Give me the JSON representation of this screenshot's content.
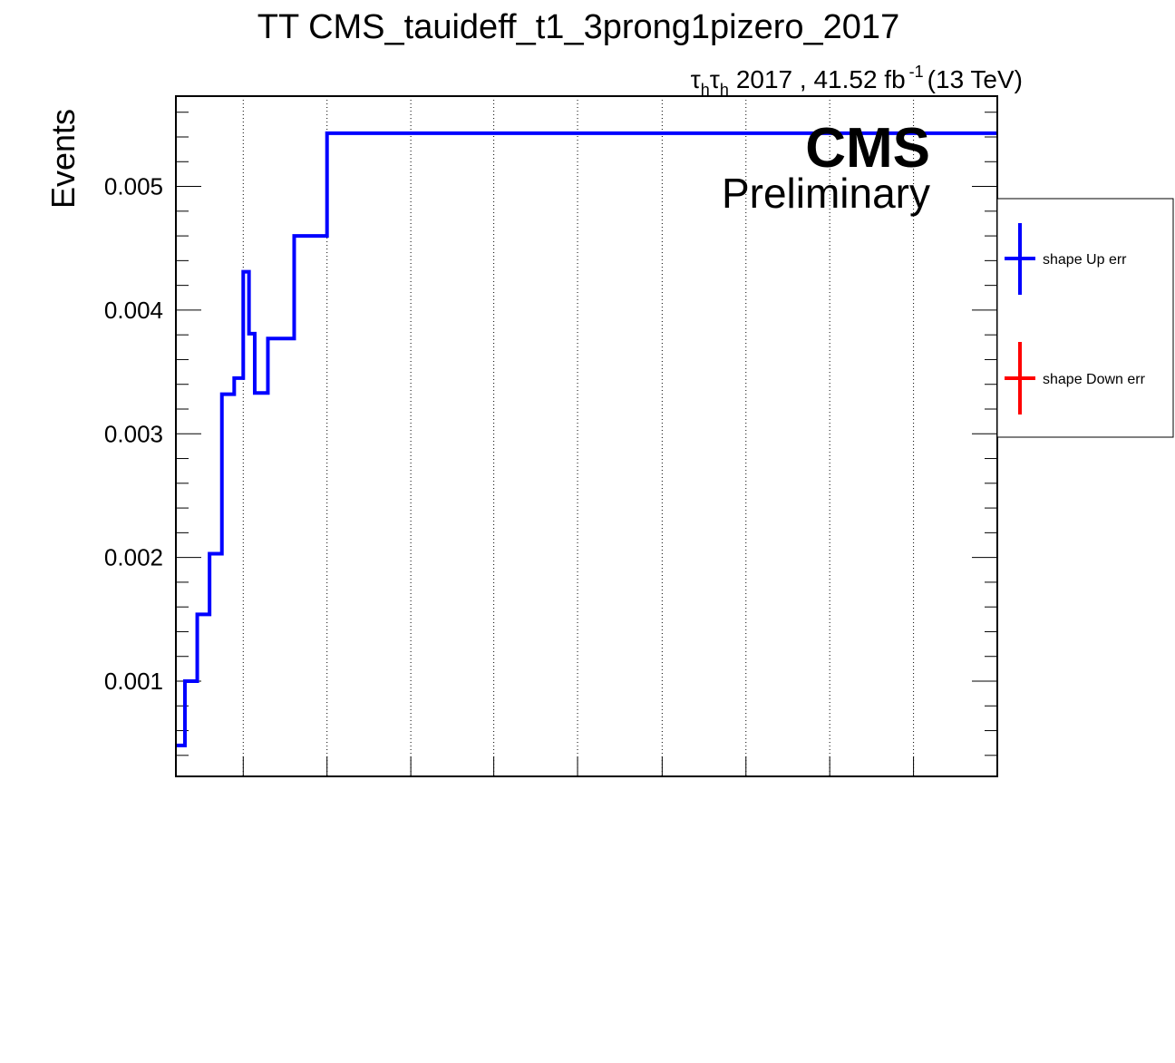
{
  "chart_data": {
    "type": "line",
    "title": "TT CMS_tauideff_t1_3prong1pizero_2017",
    "lumi_label": {
      "channel_prefix": "τ",
      "channel_sub": "h",
      "channel_mid": "τ",
      "channel_sub2": "h",
      "text": "2017 , 41.52 fb",
      "exponent": "-1",
      "energy": "(13 TeV)"
    },
    "cms_label": "CMS",
    "preliminary_label": "Preliminary",
    "ylabel": "Events",
    "ylim": [
      0.00023,
      0.00573
    ],
    "xlim": [
      0,
      1
    ],
    "grid": "vertical-dotted",
    "ytick_labels": [
      {
        "value": 0.001,
        "label": "0.001"
      },
      {
        "value": 0.002,
        "label": "0.002"
      },
      {
        "value": 0.003,
        "label": "0.003"
      },
      {
        "value": 0.004,
        "label": "0.004"
      },
      {
        "value": 0.005,
        "label": "0.005"
      }
    ],
    "yminor_step": 0.0002,
    "xgrid_at": [
      0.082,
      0.184,
      0.286,
      0.387,
      0.489,
      0.592,
      0.694,
      0.796,
      0.898
    ],
    "series": [
      {
        "name": "shape Up err",
        "color": "#0000ff",
        "step_edges": [
          0,
          0.011,
          0.026,
          0.041,
          0.056,
          0.071,
          0.082,
          0.089,
          0.096,
          0.112,
          0.144,
          0.184,
          0.235,
          1
        ],
        "values": [
          0.00048,
          0.001,
          0.00154,
          0.00203,
          0.00332,
          0.00345,
          0.00431,
          0.00381,
          0.00333,
          0.00377,
          0.0046,
          0.00543,
          0.00543
        ]
      }
    ],
    "legend": {
      "placement": "right-outside",
      "entries": [
        {
          "label": "shape Up err",
          "color": "#0000ff"
        },
        {
          "label": "shape Down err",
          "color": "#ff0000"
        }
      ]
    }
  }
}
